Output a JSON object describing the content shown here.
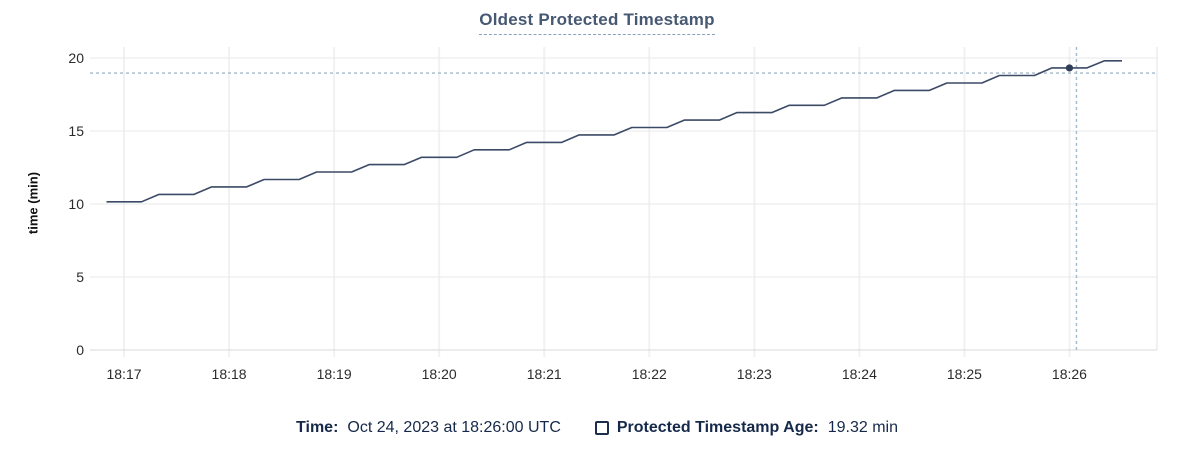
{
  "chart_data": {
    "type": "line",
    "title": "Oldest Protected Timestamp",
    "xlabel": "",
    "ylabel": "time (min)",
    "grid": true,
    "legend_position": "bottom",
    "ylim": [
      0,
      20
    ],
    "y_ticks": [
      0,
      5,
      10,
      15,
      20
    ],
    "x_ticks": [
      "18:17",
      "18:18",
      "18:19",
      "18:20",
      "18:21",
      "18:22",
      "18:23",
      "18:24",
      "18:25",
      "18:26"
    ],
    "xlim": [
      "18:16:44",
      "18:26:50"
    ],
    "series": [
      {
        "name": "Protected Timestamp Age",
        "unit": "min",
        "points": [
          [
            "18:16:50",
            10.15
          ],
          [
            "18:17:10",
            10.15
          ],
          [
            "18:17:20",
            10.66
          ],
          [
            "18:17:40",
            10.66
          ],
          [
            "18:17:50",
            11.17
          ],
          [
            "18:18:10",
            11.17
          ],
          [
            "18:18:20",
            11.68
          ],
          [
            "18:18:40",
            11.68
          ],
          [
            "18:18:50",
            12.19
          ],
          [
            "18:19:10",
            12.19
          ],
          [
            "18:19:20",
            12.7
          ],
          [
            "18:19:40",
            12.7
          ],
          [
            "18:19:50",
            13.2
          ],
          [
            "18:20:10",
            13.2
          ],
          [
            "18:20:20",
            13.71
          ],
          [
            "18:20:40",
            13.71
          ],
          [
            "18:20:50",
            14.22
          ],
          [
            "18:21:10",
            14.22
          ],
          [
            "18:21:20",
            14.73
          ],
          [
            "18:21:40",
            14.73
          ],
          [
            "18:21:50",
            15.24
          ],
          [
            "18:22:10",
            15.24
          ],
          [
            "18:22:20",
            15.75
          ],
          [
            "18:22:40",
            15.75
          ],
          [
            "18:22:50",
            16.26
          ],
          [
            "18:23:10",
            16.26
          ],
          [
            "18:23:20",
            16.76
          ],
          [
            "18:23:40",
            16.76
          ],
          [
            "18:23:50",
            17.27
          ],
          [
            "18:24:10",
            17.27
          ],
          [
            "18:24:20",
            17.78
          ],
          [
            "18:24:40",
            17.78
          ],
          [
            "18:24:50",
            18.29
          ],
          [
            "18:25:10",
            18.29
          ],
          [
            "18:25:20",
            18.8
          ],
          [
            "18:25:40",
            18.8
          ],
          [
            "18:25:50",
            19.32
          ],
          [
            "18:26:10",
            19.32
          ],
          [
            "18:26:20",
            19.81
          ],
          [
            "18:26:30",
            19.81
          ]
        ]
      }
    ],
    "highlighted_point": {
      "time": "18:26:00",
      "value": 19.32
    },
    "crosshair": {
      "x_time": "18:26:04",
      "y_value": 18.97
    },
    "colors": {
      "line": "#3b4a66",
      "point": "#2e3e58",
      "crosshair": "#a4b9c8",
      "grid_h": "#e9e9e9",
      "grid_v": "#f2f1f2",
      "axis_line": "#d8d8d8",
      "tick_text": "#2b2b2b"
    }
  },
  "legend": {
    "time_label": "Time:",
    "time_value": "Oct 24, 2023 at 18:26:00 UTC",
    "series_checkbox": "unchecked",
    "series_label": "Protected Timestamp Age:",
    "series_value": "19.32 min"
  },
  "colors": {
    "title": "#475872",
    "title_underline": "#8ba0bd",
    "legend_text": "#16294a"
  }
}
